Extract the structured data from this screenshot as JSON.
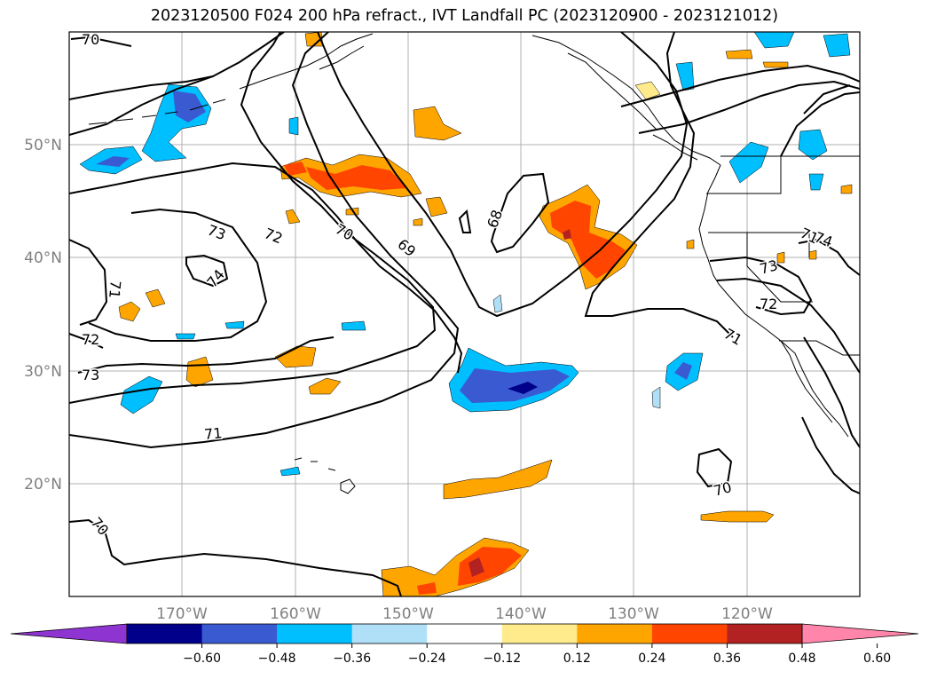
{
  "title": "2023120500 F024 200 hPa refract., IVT Landfall PC (2023120900 - 2023121012)",
  "lon_labels": [
    "170°W",
    "160°W",
    "150°W",
    "140°W",
    "130°W",
    "120°W"
  ],
  "lat_labels": [
    "50°N",
    "40°N",
    "30°N",
    "20°N"
  ],
  "contour_labels": [
    "70",
    "73",
    "72",
    "70",
    "69",
    "68",
    "74",
    "71",
    "72",
    "73",
    "71",
    "73",
    "72",
    "71",
    "74",
    "70",
    "70",
    "71"
  ],
  "colorbar": {
    "ticks": [
      "−0.60",
      "−0.48",
      "−0.36",
      "−0.24",
      "−0.12",
      "0.12",
      "0.24",
      "0.36",
      "0.48",
      "0.60"
    ],
    "colors": [
      "#8e35d1",
      "#00008b",
      "#3a5ad1",
      "#00bfff",
      "#b0e0f8",
      "#ffffff",
      "#ffeb8c",
      "#ffa500",
      "#ff4500",
      "#b22222",
      "#ff85aa"
    ]
  },
  "colors": {
    "contour": "#000000",
    "grid": "#b0b0b0",
    "tick_label": "#808080"
  }
}
